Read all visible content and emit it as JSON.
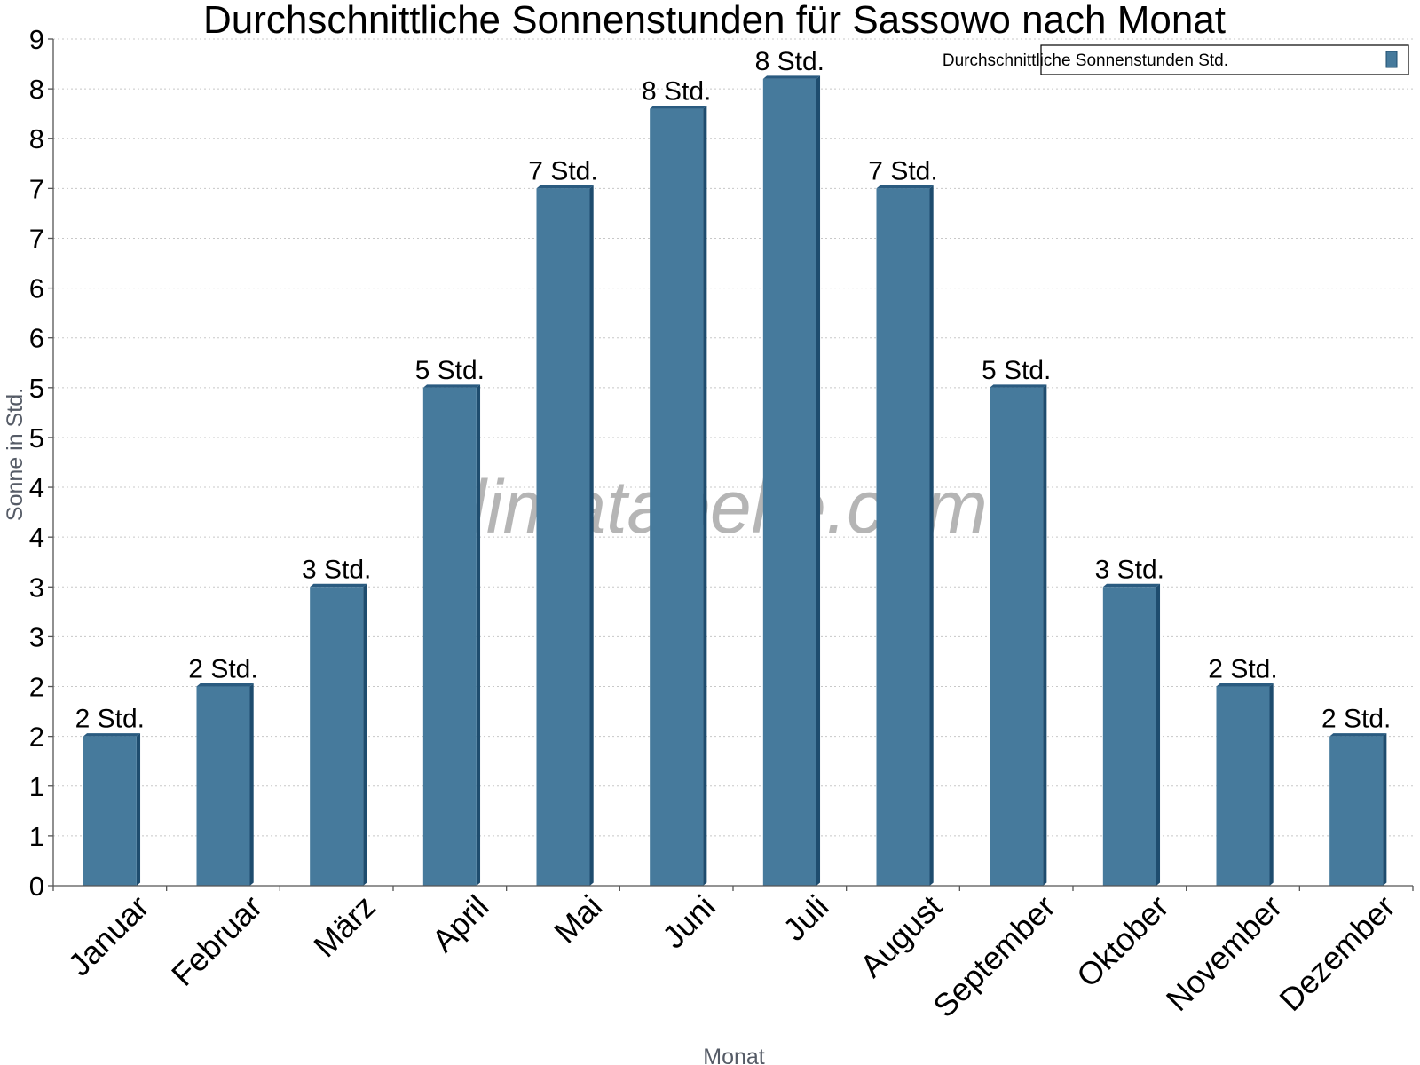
{
  "chart_data": {
    "type": "bar",
    "title": "Durchschnittliche Sonnenstunden für Sassowo nach Monat",
    "xlabel": "Monat",
    "ylabel": "Sonne in Std.",
    "ylim": [
      0,
      8.5
    ],
    "y_ticks": [
      {
        "value": 0,
        "label": "0"
      },
      {
        "value": 0.5,
        "label": "1"
      },
      {
        "value": 1,
        "label": "1"
      },
      {
        "value": 1.5,
        "label": "2"
      },
      {
        "value": 2,
        "label": "2"
      },
      {
        "value": 2.5,
        "label": "3"
      },
      {
        "value": 3,
        "label": "3"
      },
      {
        "value": 3.5,
        "label": "4"
      },
      {
        "value": 4,
        "label": "4"
      },
      {
        "value": 4.5,
        "label": "5"
      },
      {
        "value": 5,
        "label": "5"
      },
      {
        "value": 5.5,
        "label": "6"
      },
      {
        "value": 6,
        "label": "6"
      },
      {
        "value": 6.5,
        "label": "7"
      },
      {
        "value": 7,
        "label": "7"
      },
      {
        "value": 7.5,
        "label": "8"
      },
      {
        "value": 8,
        "label": "8"
      },
      {
        "value": 8.5,
        "label": "9"
      }
    ],
    "grid": true,
    "legend_position": "top-right",
    "categories": [
      "Januar",
      "Februar",
      "März",
      "April",
      "Mai",
      "Juni",
      "Juli",
      "August",
      "September",
      "Oktober",
      "November",
      "Dezember"
    ],
    "series": [
      {
        "name": "Durchschnittliche Sonnenstunden Std.",
        "values": [
          1.5,
          2.0,
          3.0,
          5.0,
          7.0,
          7.8,
          8.1,
          7.0,
          5.0,
          3.0,
          2.0,
          1.5
        ],
        "data_labels": [
          "2 Std.",
          "2 Std.",
          "3 Std.",
          "5 Std.",
          "7 Std.",
          "8 Std.",
          "8 Std.",
          "7 Std.",
          "5 Std.",
          "3 Std.",
          "2 Std.",
          "2 Std."
        ]
      }
    ],
    "colors": {
      "bar_front": "#467a9c",
      "bar_side": "#1e4c6e",
      "bar_top": "#2a5b80",
      "grid": "#c8c8c8",
      "axis": "#555555"
    },
    "watermark": "klimatabelle.com"
  }
}
